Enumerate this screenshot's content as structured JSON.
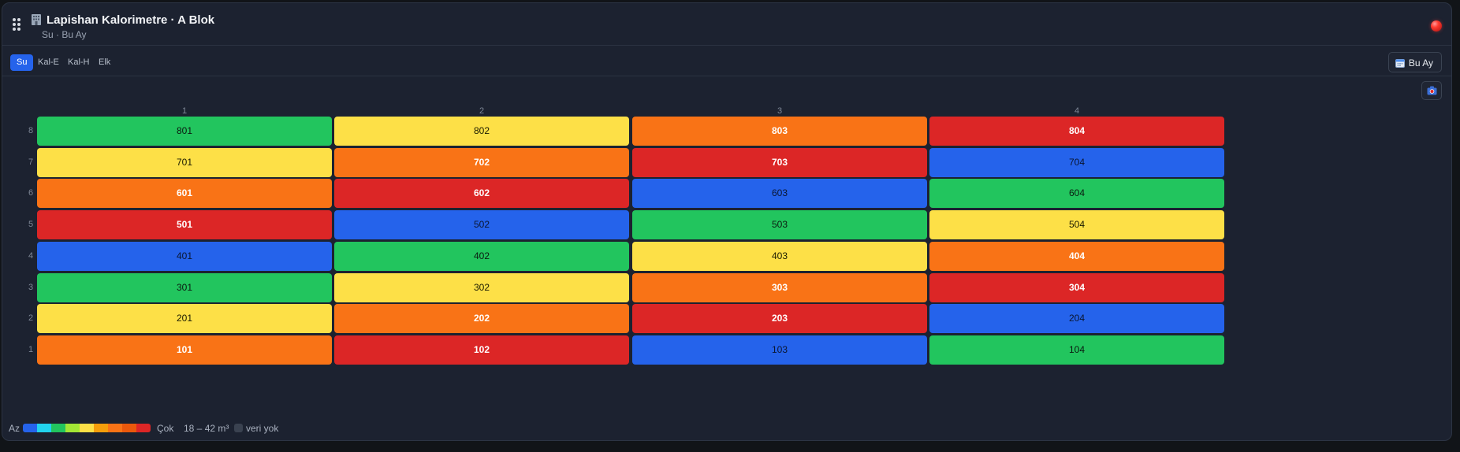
{
  "header": {
    "title": "Lapishan Kalorimetre · A Blok",
    "subtitle": "Su · Bu Ay"
  },
  "tabs": [
    {
      "label": "Su",
      "active": true
    },
    {
      "label": "Kal-E",
      "active": false
    },
    {
      "label": "Kal-H",
      "active": false
    },
    {
      "label": "Elk",
      "active": false
    }
  ],
  "period_button": {
    "label": "Bu Ay"
  },
  "grid": {
    "columns": [
      "1",
      "2",
      "3",
      "4"
    ],
    "rows": [
      {
        "floor": "8",
        "units": [
          {
            "label": "801",
            "color": "#22c55e",
            "text": "#0b1a10"
          },
          {
            "label": "802",
            "color": "#fde047",
            "text": "#1a1a00"
          },
          {
            "label": "803",
            "color": "#f97316",
            "text": "#ffffff"
          },
          {
            "label": "804",
            "color": "#dc2626",
            "text": "#ffffff"
          }
        ]
      },
      {
        "floor": "7",
        "units": [
          {
            "label": "701",
            "color": "#fde047",
            "text": "#1a1a00"
          },
          {
            "label": "702",
            "color": "#f97316",
            "text": "#ffffff"
          },
          {
            "label": "703",
            "color": "#dc2626",
            "text": "#ffffff"
          },
          {
            "label": "704",
            "color": "#2563eb",
            "text": "#0b1630"
          }
        ]
      },
      {
        "floor": "6",
        "units": [
          {
            "label": "601",
            "color": "#f97316",
            "text": "#ffffff"
          },
          {
            "label": "602",
            "color": "#dc2626",
            "text": "#ffffff"
          },
          {
            "label": "603",
            "color": "#2563eb",
            "text": "#0b1630"
          },
          {
            "label": "604",
            "color": "#22c55e",
            "text": "#0b1a10"
          }
        ]
      },
      {
        "floor": "5",
        "units": [
          {
            "label": "501",
            "color": "#dc2626",
            "text": "#ffffff"
          },
          {
            "label": "502",
            "color": "#2563eb",
            "text": "#0b1630"
          },
          {
            "label": "503",
            "color": "#22c55e",
            "text": "#0b1a10"
          },
          {
            "label": "504",
            "color": "#fde047",
            "text": "#1a1a00"
          }
        ]
      },
      {
        "floor": "4",
        "units": [
          {
            "label": "401",
            "color": "#2563eb",
            "text": "#0b1630"
          },
          {
            "label": "402",
            "color": "#22c55e",
            "text": "#0b1a10"
          },
          {
            "label": "403",
            "color": "#fde047",
            "text": "#1a1a00"
          },
          {
            "label": "404",
            "color": "#f97316",
            "text": "#ffffff"
          }
        ]
      },
      {
        "floor": "3",
        "units": [
          {
            "label": "301",
            "color": "#22c55e",
            "text": "#0b1a10"
          },
          {
            "label": "302",
            "color": "#fde047",
            "text": "#1a1a00"
          },
          {
            "label": "303",
            "color": "#f97316",
            "text": "#ffffff"
          },
          {
            "label": "304",
            "color": "#dc2626",
            "text": "#ffffff"
          }
        ]
      },
      {
        "floor": "2",
        "units": [
          {
            "label": "201",
            "color": "#fde047",
            "text": "#1a1a00"
          },
          {
            "label": "202",
            "color": "#f97316",
            "text": "#ffffff"
          },
          {
            "label": "203",
            "color": "#dc2626",
            "text": "#ffffff"
          },
          {
            "label": "204",
            "color": "#2563eb",
            "text": "#0b1630"
          }
        ]
      },
      {
        "floor": "1",
        "units": [
          {
            "label": "101",
            "color": "#f97316",
            "text": "#ffffff"
          },
          {
            "label": "102",
            "color": "#dc2626",
            "text": "#ffffff"
          },
          {
            "label": "103",
            "color": "#2563eb",
            "text": "#0b1630"
          },
          {
            "label": "104",
            "color": "#22c55e",
            "text": "#0b1a10"
          }
        ]
      }
    ]
  },
  "legend": {
    "low_label": "Az",
    "high_label": "Çok",
    "range": "18 – 42 m³",
    "no_data_label": "veri yok",
    "scale_colors": [
      "#2563eb",
      "#22d3ee",
      "#22c55e",
      "#a3e635",
      "#fde047",
      "#f59e0b",
      "#f97316",
      "#ea580c",
      "#dc2626"
    ]
  },
  "colors": {
    "accent": "#2563eb",
    "background": "#1c2230"
  },
  "icons": {
    "drag_handle": "drag-handle-icon",
    "building": "building-icon",
    "status": "status-dot-icon",
    "calendar": "calendar-icon",
    "screenshot": "camera-icon"
  }
}
